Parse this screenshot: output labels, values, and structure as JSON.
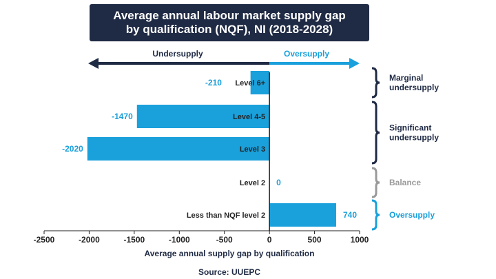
{
  "title": {
    "line1": "Average annual labour market supply gap",
    "line2": "by qualification (NQF), NI (2018-2028)"
  },
  "direction": {
    "left_label": "Undersupply",
    "right_label": "Oversupply",
    "left_color": "#1f2a44",
    "right_color": "#1aa0db"
  },
  "chart_data": {
    "type": "bar",
    "orientation": "horizontal",
    "categories": [
      "Level 6+",
      "Level 4-5",
      "Level 3",
      "Level 2",
      "Less than NQF level 2"
    ],
    "values": [
      -210,
      -1470,
      -2020,
      0,
      740
    ],
    "data_labels": [
      "-210",
      "-1470",
      "-2020",
      "0",
      "740"
    ],
    "xlim": [
      -2500,
      1000
    ],
    "xticks": [
      -2500,
      -2000,
      -1500,
      -1000,
      -500,
      0,
      500,
      1000
    ],
    "xtick_labels": [
      "-2500",
      "-2000",
      "-1500",
      "-1000",
      "-500",
      "0",
      "500",
      "1000"
    ],
    "xlabel": "Average annual supply gap by qualification",
    "bar_color": "#1aa0db",
    "grid": false
  },
  "groups": [
    {
      "label_lines": [
        "Marginal",
        "undersupply"
      ],
      "from": 0,
      "to": 0,
      "color": "#1f2a44"
    },
    {
      "label_lines": [
        "Significant",
        "undersupply"
      ],
      "from": 1,
      "to": 2,
      "color": "#1f2a44"
    },
    {
      "label_lines": [
        "Balance"
      ],
      "from": 3,
      "to": 3,
      "color": "#9a9a9a"
    },
    {
      "label_lines": [
        "Oversupply"
      ],
      "from": 4,
      "to": 4,
      "color": "#1aa0db"
    }
  ],
  "source": "Source: UUEPC"
}
